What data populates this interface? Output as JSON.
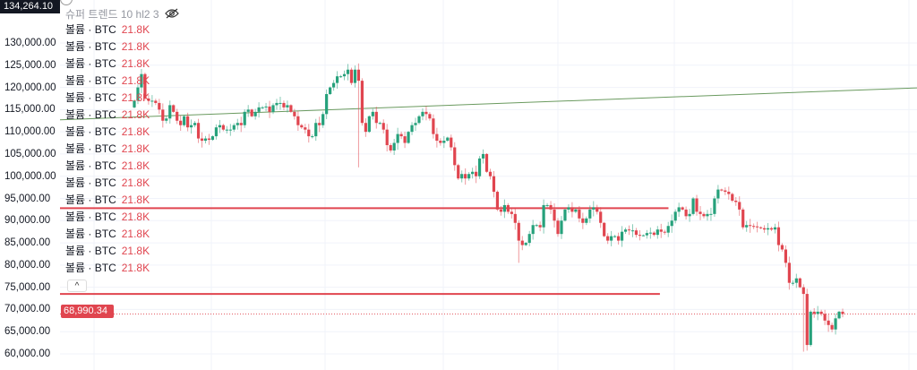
{
  "header": {
    "top_price_tag": "134,264.10",
    "plus_label": "+",
    "indicator_title": "슈퍼 트렌드 10 hl2 3",
    "eye_icon": "eye-slash-icon"
  },
  "volume_rows": {
    "label": "볼륨 · BTC",
    "value": "21.8K",
    "count": 15
  },
  "collapse_label": "^",
  "current_price_tag": "68,990.34",
  "colors": {
    "up": "#26a17b",
    "down": "#e0454f",
    "trend": "#6a9a5f",
    "grid": "#f0f3fa"
  },
  "chart_data": {
    "type": "candlestick",
    "ylim": [
      58000,
      134000
    ],
    "yticks": [
      "130,000.00",
      "125,000.00",
      "120,000.00",
      "115,000.00",
      "110,000.00",
      "105,000.00",
      "100,000.00",
      "95,000.00",
      "90,000.00",
      "85,000.00",
      "80,000.00",
      "75,000.00",
      "70,000.00",
      "65,000.00",
      "60,000.00"
    ],
    "ytick_values": [
      130000,
      125000,
      120000,
      115000,
      110000,
      105000,
      100000,
      95000,
      90000,
      85000,
      80000,
      75000,
      70000,
      65000,
      60000
    ],
    "current_price": 68990.34,
    "horizontal_levels": [
      {
        "price": 92800,
        "end_fraction": 0.71
      },
      {
        "price": 73500,
        "end_fraction": 0.7
      }
    ],
    "trendline": {
      "start_price": 112700,
      "end_price": 119900
    },
    "low_overrides": [
      [
        63,
        102000
      ],
      [
        108,
        80500
      ],
      [
        188,
        60500
      ]
    ],
    "closes": [
      117000,
      120000,
      123000,
      117500,
      117000,
      117000,
      116500,
      115000,
      112500,
      113000,
      116000,
      114500,
      112500,
      111500,
      113500,
      111000,
      111500,
      112000,
      108500,
      108000,
      108500,
      108200,
      109000,
      111000,
      111500,
      110500,
      110500,
      110500,
      111500,
      112000,
      111500,
      114500,
      115000,
      113500,
      114500,
      115500,
      115500,
      115700,
      114500,
      116000,
      116500,
      116500,
      115500,
      116000,
      114500,
      113500,
      111500,
      111000,
      110500,
      109000,
      109000,
      112000,
      111500,
      114000,
      118500,
      120000,
      121000,
      122500,
      122500,
      123000,
      124000,
      121000,
      124000,
      121500,
      112000,
      110000,
      113500,
      114500,
      112000,
      112000,
      110500,
      107000,
      105800,
      107500,
      109500,
      109000,
      107500,
      110000,
      111500,
      112000,
      113500,
      114500,
      114000,
      113000,
      109500,
      108000,
      107500,
      108000,
      108700,
      106500,
      102500,
      99500,
      100500,
      99500,
      100500,
      101000,
      100000,
      104000,
      105000,
      101000,
      100000,
      96500,
      92500,
      92000,
      93500,
      92000,
      91500,
      89500,
      85500,
      84500,
      85000,
      87000,
      89000,
      89000,
      88500,
      93500,
      93500,
      92500,
      90000,
      87000,
      90000,
      92500,
      93000,
      92000,
      92500,
      90500,
      89500,
      90500,
      92500,
      93000,
      92000,
      89500,
      86500,
      85500,
      86500,
      86500,
      85500,
      87500,
      88000,
      87800,
      87800,
      86800,
      86700,
      86700,
      87200,
      87300,
      86800,
      88000,
      87500,
      87300,
      88800,
      90000,
      92000,
      93000,
      92500,
      91000,
      91500,
      95000,
      92000,
      91500,
      91000,
      91500,
      91500,
      95000,
      97000,
      96800,
      96500,
      96000,
      94500,
      94200,
      92500,
      88500,
      89000,
      88800,
      88700,
      88500,
      88300,
      88000,
      88300,
      88000,
      88500,
      84500,
      83500,
      80500,
      76000,
      76000,
      77000,
      75000,
      73500,
      62000,
      69500,
      69000,
      69500,
      69000,
      67500,
      66500,
      65500,
      68000,
      69500,
      69000
    ]
  }
}
